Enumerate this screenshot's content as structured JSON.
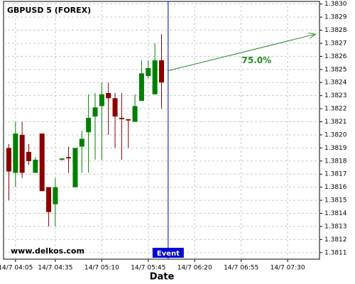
{
  "chart_data": {
    "type": "candlestick",
    "title": "GBPUSD 5 (FOREX)",
    "watermark": "www.delkos.com",
    "x_label": "Date",
    "x": [
      "14/7 04:00",
      "14/7 04:05",
      "14/7 04:10",
      "14/7 04:15",
      "14/7 04:20",
      "14/7 04:25",
      "14/7 04:30",
      "14/7 04:35",
      "14/7 04:40",
      "14/7 04:45",
      "14/7 04:50",
      "14/7 04:55",
      "14/7 05:00",
      "14/7 05:05",
      "14/7 05:10",
      "14/7 05:15",
      "14/7 05:20",
      "14/7 05:25",
      "14/7 05:30",
      "14/7 05:35",
      "14/7 05:40",
      "14/7 05:45",
      "14/7 05:50",
      "14/7 05:55"
    ],
    "open": [
      1.3819,
      1.38171,
      1.382,
      1.38187,
      1.38171,
      1.38201,
      1.3816,
      1.38147,
      1.38181,
      1.38183,
      1.3816,
      1.38191,
      1.38202,
      1.38214,
      1.38222,
      1.38232,
      1.38228,
      1.38213,
      1.38212,
      1.3821,
      1.38226,
      1.38245,
      1.38231,
      1.38257
    ],
    "high": [
      1.38193,
      1.3821,
      1.3821,
      1.38193,
      1.38183,
      1.38201,
      1.3816,
      1.38167,
      1.38182,
      1.38191,
      1.3819,
      1.38203,
      1.38231,
      1.38232,
      1.3824,
      1.3824,
      1.38232,
      1.38232,
      1.38212,
      1.38231,
      1.38257,
      1.38257,
      1.3827,
      1.38277
    ],
    "low": [
      1.3815,
      1.3816,
      1.38167,
      1.38177,
      1.38171,
      1.38157,
      1.3813,
      1.3813,
      1.3818,
      1.38171,
      1.3816,
      1.38171,
      1.38171,
      1.38181,
      1.38181,
      1.382,
      1.3819,
      1.38181,
      1.3819,
      1.3821,
      1.38226,
      1.38243,
      1.38231,
      1.3822
    ],
    "close": [
      1.38172,
      1.38201,
      1.38171,
      1.3818,
      1.38181,
      1.38157,
      1.38141,
      1.3816,
      1.38182,
      1.38182,
      1.3819,
      1.38197,
      1.38213,
      1.38221,
      1.38231,
      1.38228,
      1.38214,
      1.38212,
      1.38211,
      1.38222,
      1.38247,
      1.38251,
      1.38257,
      1.3824
    ],
    "up_color": "#008000",
    "down_color": "#8b0000",
    "xlim": [
      "14/7 03:56",
      "14/7 07:54"
    ],
    "xticks": [
      "14/7 04:05",
      "14/7 04:35",
      "14/7 05:10",
      "14/7 05:45",
      "14/7 06:20",
      "14/7 06:55",
      "14/7 07:30"
    ],
    "ylim": [
      1.38105,
      1.38302
    ],
    "yticks": [
      1.3811,
      1.3812,
      1.3813,
      1.3814,
      1.3815,
      1.3816,
      1.3817,
      1.3818,
      1.3819,
      {
        "value": 1.382,
        "label": "1.3820"
      },
      1.3821,
      1.3822,
      1.3823,
      1.3824,
      1.3825,
      1.3826,
      1.3827,
      1.3828,
      1.3829,
      {
        "value": 1.383,
        "label": "1.3830"
      }
    ],
    "grid": true,
    "event": {
      "x": "14/7 06:00",
      "label": "Event",
      "color": "#0000cc"
    },
    "arrow": {
      "x": [
        "14/7 06:00",
        "14/7 07:51"
      ],
      "y": [
        1.38249,
        1.38277
      ],
      "label": "75.0%",
      "color": "#228b22"
    }
  }
}
